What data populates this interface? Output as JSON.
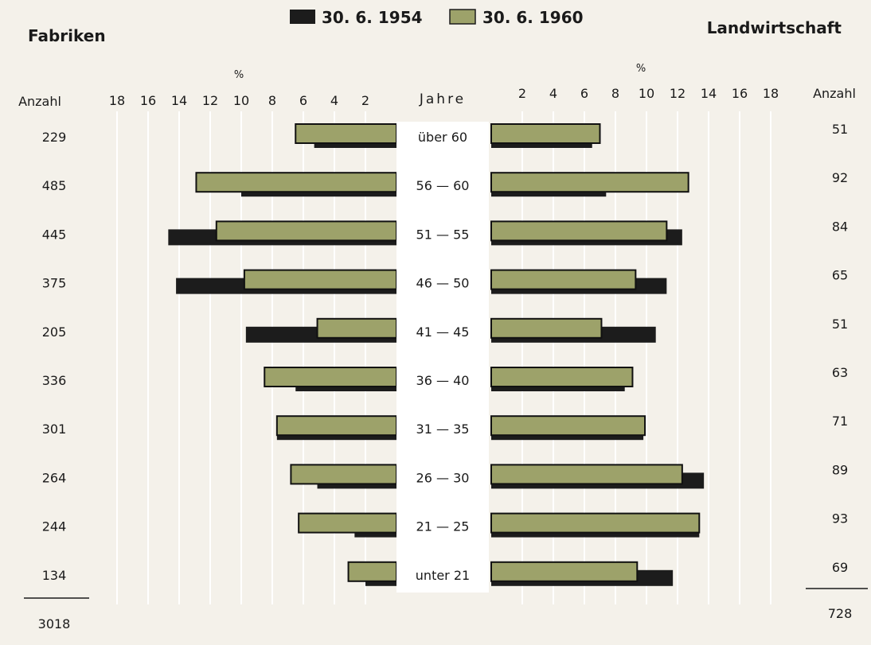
{
  "chart_data": {
    "type": "bar",
    "orientation": "horizontal-pyramid",
    "legend": [
      {
        "name": "30. 6. 1954",
        "color": "#1c1c1c"
      },
      {
        "name": "30. 6. 1960",
        "color": "#9da26a"
      }
    ],
    "left_title": "Fabriken",
    "right_title": "Landwirtschaft",
    "center_header": "Jahre",
    "count_header": "Anzahl",
    "percent_unit": "%",
    "ticks": [
      "18",
      "16",
      "14",
      "12",
      "10",
      "8",
      "6",
      "4",
      "2"
    ],
    "tick_values": [
      18,
      16,
      14,
      12,
      10,
      8,
      6,
      4,
      2
    ],
    "right_ticks": [
      "2",
      "4",
      "6",
      "8",
      "10",
      "12",
      "14",
      "16",
      "18"
    ],
    "right_tick_values": [
      2,
      4,
      6,
      8,
      10,
      12,
      14,
      16,
      18
    ],
    "xlim": [
      0,
      18
    ],
    "categories": [
      "über 60",
      "56 — 60",
      "51 — 55",
      "46 — 50",
      "41 — 45",
      "36 — 40",
      "31 — 35",
      "26 — 30",
      "21 — 25",
      "unter 21"
    ],
    "left": {
      "counts": [
        "229",
        "485",
        "445",
        "375",
        "205",
        "336",
        "301",
        "264",
        "244",
        "134"
      ],
      "total": "3018",
      "series": [
        {
          "name": "30. 6. 1954",
          "values": [
            5.3,
            10.0,
            14.7,
            14.2,
            9.7,
            6.5,
            7.7,
            5.1,
            2.7,
            2.0
          ]
        },
        {
          "name": "30. 6. 1960",
          "values": [
            6.5,
            12.9,
            11.6,
            9.8,
            5.1,
            8.5,
            7.7,
            6.8,
            6.3,
            3.1
          ]
        }
      ]
    },
    "right": {
      "counts": [
        "51",
        "92",
        "84",
        "65",
        "51",
        "63",
        "71",
        "89",
        "93",
        "69"
      ],
      "total": "728",
      "series": [
        {
          "name": "30. 6. 1954",
          "values": [
            6.5,
            7.4,
            12.3,
            11.3,
            10.6,
            8.6,
            9.8,
            13.7,
            13.4,
            11.7
          ]
        },
        {
          "name": "30. 6. 1960",
          "values": [
            7.0,
            12.7,
            11.3,
            9.3,
            7.1,
            9.1,
            9.9,
            12.3,
            13.4,
            9.4
          ]
        }
      ]
    }
  }
}
